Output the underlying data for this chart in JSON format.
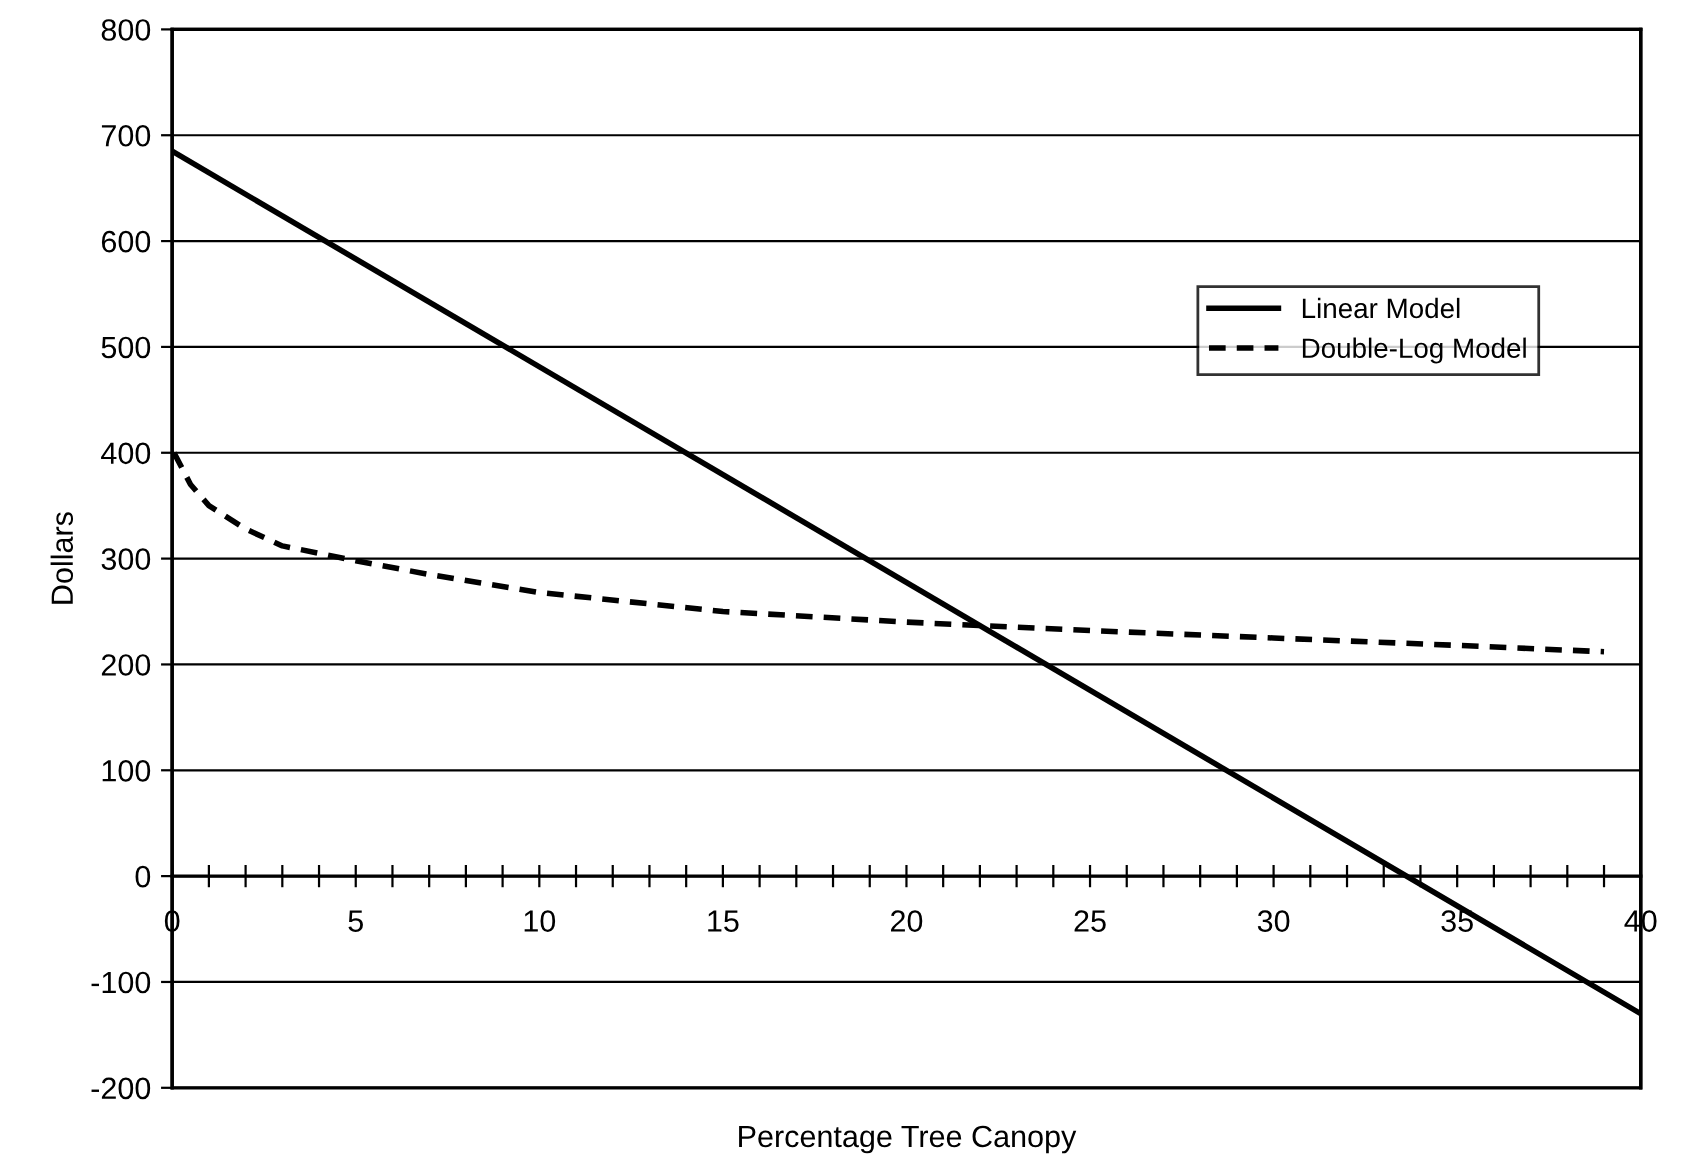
{
  "chart_data": {
    "type": "line",
    "xlabel": "Percentage Tree Canopy",
    "ylabel": "Dollars",
    "xlim": [
      0,
      40
    ],
    "ylim": [
      -200,
      800
    ],
    "xticks": [
      0,
      {
        "value": 1,
        "label": null
      },
      {
        "value": 2,
        "label": null
      },
      {
        "value": 3,
        "label": null
      },
      {
        "value": 4,
        "label": null
      },
      5,
      {
        "value": 6,
        "label": null
      },
      {
        "value": 7,
        "label": null
      },
      {
        "value": 8,
        "label": null
      },
      {
        "value": 9,
        "label": null
      },
      10,
      {
        "value": 11,
        "label": null
      },
      {
        "value": 12,
        "label": null
      },
      {
        "value": 13,
        "label": null
      },
      {
        "value": 14,
        "label": null
      },
      15,
      {
        "value": 16,
        "label": null
      },
      {
        "value": 17,
        "label": null
      },
      {
        "value": 18,
        "label": null
      },
      {
        "value": 19,
        "label": null
      },
      20,
      {
        "value": 21,
        "label": null
      },
      {
        "value": 22,
        "label": null
      },
      {
        "value": 23,
        "label": null
      },
      {
        "value": 24,
        "label": null
      },
      25,
      {
        "value": 26,
        "label": null
      },
      {
        "value": 27,
        "label": null
      },
      {
        "value": 28,
        "label": null
      },
      {
        "value": 29,
        "label": null
      },
      30,
      {
        "value": 31,
        "label": null
      },
      {
        "value": 32,
        "label": null
      },
      {
        "value": 33,
        "label": null
      },
      {
        "value": 34,
        "label": null
      },
      35,
      {
        "value": 36,
        "label": null
      },
      {
        "value": 37,
        "label": null
      },
      {
        "value": 38,
        "label": null
      },
      {
        "value": 39,
        "label": null
      },
      40
    ],
    "yticks": [
      -200,
      -100,
      0,
      100,
      200,
      300,
      400,
      500,
      600,
      700,
      800
    ],
    "grid": "y",
    "legend": "top right",
    "marker": "none",
    "series": [
      {
        "name": "Linear Model",
        "color": "#000000",
        "line_style": "solid",
        "x": [
          0,
          40
        ],
        "values": [
          685,
          -130
        ]
      },
      {
        "name": "Double-Log Model",
        "color": "#000000",
        "line_style": "dashed",
        "x": [
          0.05,
          0.5,
          1,
          2,
          3,
          5,
          7,
          10,
          15,
          20,
          25,
          30,
          35,
          39
        ],
        "values": [
          400,
          370,
          350,
          328,
          312,
          298,
          285,
          268,
          250,
          240,
          232,
          225,
          218,
          212
        ]
      }
    ]
  }
}
